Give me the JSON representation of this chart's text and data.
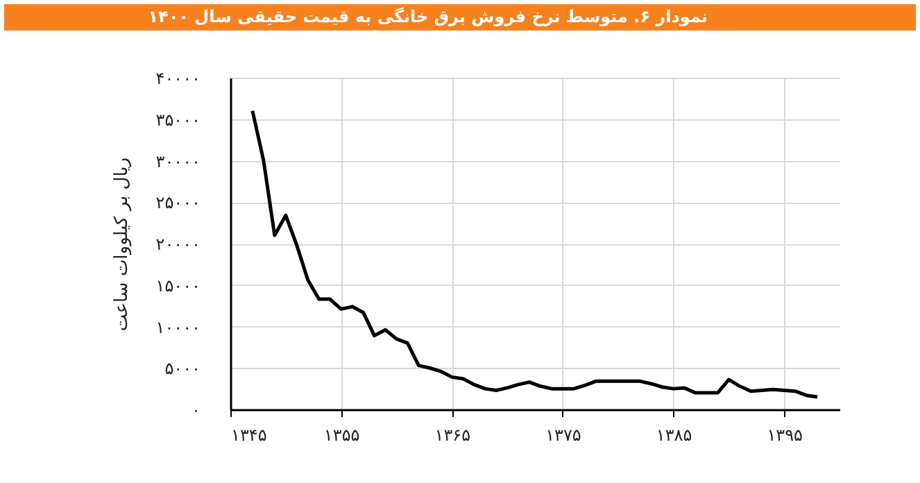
{
  "chart_data": {
    "type": "line",
    "title": "نمودار ۶. متوسط نرخ فروش برق خانگی به قیمت حقیقی سال ۱۴۰۰",
    "ylabel": "ریال بر کیلووات ساعت",
    "x": [
      1347,
      1348,
      1349,
      1350,
      1351,
      1352,
      1353,
      1354,
      1355,
      1356,
      1357,
      1358,
      1359,
      1360,
      1361,
      1362,
      1363,
      1364,
      1365,
      1366,
      1367,
      1368,
      1369,
      1370,
      1371,
      1372,
      1373,
      1374,
      1375,
      1376,
      1377,
      1378,
      1379,
      1380,
      1381,
      1382,
      1383,
      1384,
      1385,
      1386,
      1387,
      1388,
      1389,
      1390,
      1391,
      1392,
      1393,
      1394,
      1395,
      1396,
      1397,
      1398
    ],
    "series": [
      {
        "color": "#000000",
        "values": [
          36000,
          30000,
          21000,
          23400,
          19800,
          15600,
          13300,
          13300,
          12100,
          12400,
          11700,
          8900,
          9600,
          8500,
          8000,
          5300,
          5000,
          4600,
          3900,
          3700,
          3000,
          2500,
          2300,
          2600,
          3000,
          3300,
          2800,
          2500,
          2500,
          2500,
          2900,
          3400,
          3400,
          3400,
          3400,
          3400,
          3100,
          2700,
          2500,
          2600,
          2000,
          2000,
          2000,
          3600,
          2800,
          2200,
          2300,
          2400,
          2300,
          2200,
          1700,
          1500
        ]
      }
    ],
    "xlim": [
      1345,
      1400
    ],
    "xticks": [
      {
        "value": 1345,
        "label": "۱۳۴۵"
      },
      {
        "value": 1355,
        "label": "۱۳۵۵"
      },
      {
        "value": 1365,
        "label": "۱۳۶۵"
      },
      {
        "value": 1375,
        "label": "۱۳۷۵"
      },
      {
        "value": 1385,
        "label": "۱۳۸۵"
      },
      {
        "value": 1395,
        "label": "۱۳۹۵"
      }
    ],
    "ylim": [
      0,
      40000
    ],
    "yticks": [
      {
        "value": 0,
        "label": "۰"
      },
      {
        "value": 5000,
        "label": "۵۰۰۰"
      },
      {
        "value": 10000,
        "label": "۱۰۰۰۰"
      },
      {
        "value": 15000,
        "label": "۱۵۰۰۰"
      },
      {
        "value": 20000,
        "label": "۲۰۰۰۰"
      },
      {
        "value": 25000,
        "label": "۲۵۰۰۰"
      },
      {
        "value": 30000,
        "label": "۳۰۰۰۰"
      },
      {
        "value": 35000,
        "label": "۳۵۰۰۰"
      },
      {
        "value": 40000,
        "label": "۴۰۰۰۰"
      }
    ],
    "grid": true,
    "marker": "none",
    "line_style": "solid"
  }
}
